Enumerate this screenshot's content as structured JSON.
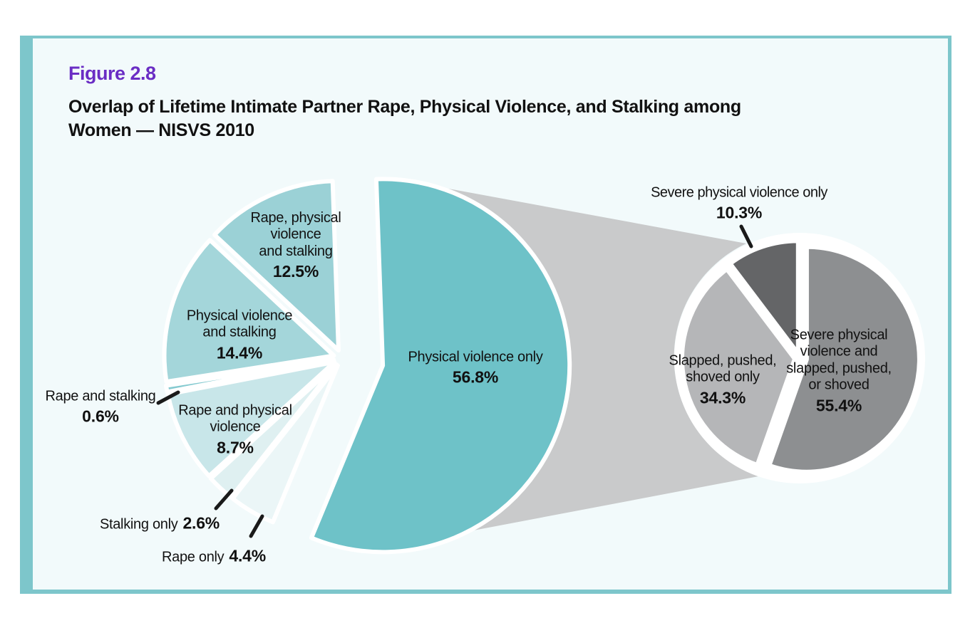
{
  "figure": {
    "number": "Figure 2.8",
    "title_line1": "Overlap of Lifetime Intimate Partner Rape, Physical Violence, and Stalking among",
    "title_line2": "Women — NISVS 2010"
  },
  "palette": {
    "page-bg": "#ffffff",
    "panel-bg": "#f2fafb",
    "panel-border": "#7dc6cb",
    "band": "#c9cacb",
    "figure-number": "#6a2dc4",
    "text": "#111111"
  },
  "chart_data": [
    {
      "type": "pie",
      "title": "Overlap of lifetime intimate partner rape, physical violence, and stalking among women",
      "legend_position": "labels-on-slices",
      "slices": [
        {
          "key": "physical-violence-only",
          "label": "Physical violence only",
          "pct": 56.8,
          "color": "#6ec2c8"
        },
        {
          "key": "rape-only",
          "label": "Rape only",
          "pct": 4.4,
          "color": "#ebf6f7"
        },
        {
          "key": "stalking-only",
          "label": "Stalking only",
          "pct": 2.6,
          "color": "#dff0f1"
        },
        {
          "key": "rape-and-physical-violence",
          "label": "Rape and physical violence",
          "pct": 8.7,
          "color": "#c8e6e9"
        },
        {
          "key": "rape-and-stalking",
          "label": "Rape and stalking",
          "pct": 0.6,
          "color": "#85cad0"
        },
        {
          "key": "physical-violence-and-stalking",
          "label": "Physical violence and stalking",
          "pct": 14.4,
          "color": "#a4d6da"
        },
        {
          "key": "rape-physical-violence-and-stalking",
          "label": "Rape, physical violence and stalking",
          "pct": 12.5,
          "color": "#9bd1d6"
        }
      ]
    },
    {
      "type": "pie",
      "title": "Breakdown of physical violence only (connected detail pie)",
      "legend_position": "labels-on-slices",
      "slices": [
        {
          "key": "severe-and-slapped",
          "label": "Severe physical violence and slapped, pushed, or shoved",
          "pct": 55.4,
          "color": "#8d8f91"
        },
        {
          "key": "slapped-pushed-shoved-only",
          "label": "Slapped, pushed, shoved only",
          "pct": 34.3,
          "color": "#b5b6b8"
        },
        {
          "key": "severe-physical-violence-only",
          "label": "Severe physical violence only",
          "pct": 10.3,
          "color": "#646567"
        }
      ]
    }
  ],
  "labels": {
    "pv_only": {
      "l1": "Physical violence only",
      "pct": "56.8%"
    },
    "rps": {
      "l1": "Rape, physical",
      "l2": "violence",
      "l3": "and stalking",
      "pct": "12.5%"
    },
    "pvs": {
      "l1": "Physical violence",
      "l2": "and stalking",
      "pct": "14.4%"
    },
    "rs": {
      "l1": "Rape and stalking",
      "pct": "0.6%"
    },
    "rpv": {
      "l1": "Rape and physical",
      "l2": "violence",
      "pct": "8.7%"
    },
    "stalking_only": {
      "l1": "Stalking only",
      "pct": "2.6%"
    },
    "rape_only": {
      "l1": "Rape only",
      "pct": "4.4%"
    },
    "spv_only": {
      "l1": "Severe physical violence only",
      "pct": "10.3%"
    },
    "slapped": {
      "l1": "Slapped, pushed,",
      "l2": "shoved only",
      "pct": "34.3%"
    },
    "severe_slapped": {
      "l1": "Severe physical",
      "l2": "violence and",
      "l3": "slapped, pushed,",
      "l4": "or shoved",
      "pct": "55.4%"
    }
  }
}
